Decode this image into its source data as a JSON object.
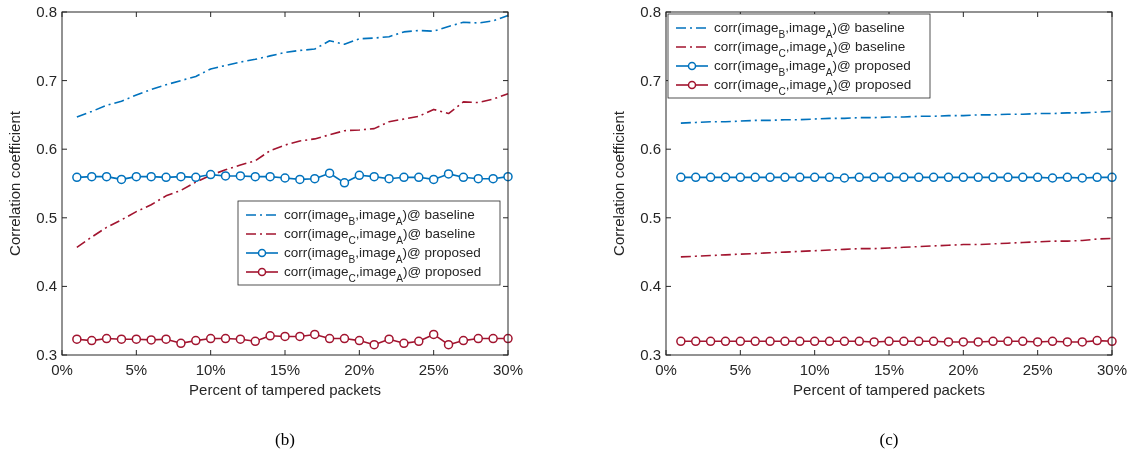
{
  "chart_data": [
    {
      "type": "line",
      "title": "(b)",
      "xlabel": "Percent of tampered packets",
      "ylabel": "Correlation coefficient",
      "x": [
        1,
        2,
        3,
        4,
        5,
        6,
        7,
        8,
        9,
        10,
        11,
        12,
        13,
        14,
        15,
        16,
        17,
        18,
        19,
        20,
        21,
        22,
        23,
        24,
        25,
        26,
        27,
        28,
        29,
        30
      ],
      "xlim": [
        0,
        30
      ],
      "xticks": [
        {
          "value": 0,
          "label": "0%"
        },
        {
          "value": 5,
          "label": "5%"
        },
        {
          "value": 10,
          "label": "10%"
        },
        {
          "value": 15,
          "label": "15%"
        },
        {
          "value": 20,
          "label": "20%"
        },
        {
          "value": 25,
          "label": "25%"
        },
        {
          "value": 30,
          "label": "30%"
        }
      ],
      "ylim": [
        0.3,
        0.8
      ],
      "yticks": [
        0.3,
        0.4,
        0.5,
        0.6,
        0.7,
        0.8
      ],
      "grid": false,
      "legend": "bottom right",
      "series": [
        {
          "name": "corr(image$_{B}$,image$_{A}$)@ baseline",
          "color": "#0072bd",
          "line_style": "dashed",
          "marker": "none",
          "values": [
            0.647,
            0.655,
            0.664,
            0.67,
            0.679,
            0.687,
            0.694,
            0.7,
            0.706,
            0.717,
            0.722,
            0.727,
            0.731,
            0.736,
            0.741,
            0.744,
            0.746,
            0.758,
            0.753,
            0.761,
            0.762,
            0.764,
            0.771,
            0.773,
            0.772,
            0.779,
            0.785,
            0.784,
            0.787,
            0.795
          ]
        },
        {
          "name": "corr(image$_{C}$,image$_{A}$)@ baseline",
          "color": "#a2142f",
          "line_style": "dashed",
          "marker": "none",
          "values": [
            0.457,
            0.472,
            0.486,
            0.497,
            0.509,
            0.519,
            0.532,
            0.54,
            0.552,
            0.562,
            0.57,
            0.577,
            0.583,
            0.598,
            0.606,
            0.612,
            0.615,
            0.621,
            0.627,
            0.628,
            0.63,
            0.64,
            0.644,
            0.648,
            0.658,
            0.652,
            0.669,
            0.668,
            0.673,
            0.681
          ]
        },
        {
          "name": "corr(image$_{B}$,image$_{A}$)@ proposed",
          "color": "#0072bd",
          "line_style": "solid",
          "marker": "circle",
          "values": [
            0.559,
            0.56,
            0.56,
            0.556,
            0.56,
            0.56,
            0.559,
            0.56,
            0.559,
            0.563,
            0.561,
            0.561,
            0.56,
            0.56,
            0.558,
            0.556,
            0.557,
            0.565,
            0.551,
            0.562,
            0.56,
            0.557,
            0.559,
            0.559,
            0.556,
            0.564,
            0.559,
            0.557,
            0.557,
            0.56
          ]
        },
        {
          "name": "corr(image$_{C}$,image$_{A}$)@ proposed",
          "color": "#a2142f",
          "line_style": "solid",
          "marker": "circle",
          "values": [
            0.323,
            0.321,
            0.324,
            0.323,
            0.323,
            0.322,
            0.323,
            0.317,
            0.321,
            0.324,
            0.324,
            0.323,
            0.32,
            0.328,
            0.327,
            0.327,
            0.33,
            0.324,
            0.324,
            0.321,
            0.315,
            0.323,
            0.317,
            0.32,
            0.33,
            0.315,
            0.321,
            0.324,
            0.324,
            0.324
          ]
        }
      ]
    },
    {
      "type": "line",
      "title": "(c)",
      "xlabel": "Percent of tampered packets",
      "ylabel": "Correlation coefficient",
      "x": [
        1,
        2,
        3,
        4,
        5,
        6,
        7,
        8,
        9,
        10,
        11,
        12,
        13,
        14,
        15,
        16,
        17,
        18,
        19,
        20,
        21,
        22,
        23,
        24,
        25,
        26,
        27,
        28,
        29,
        30
      ],
      "xlim": [
        0,
        30
      ],
      "xticks": [
        {
          "value": 0,
          "label": "0%"
        },
        {
          "value": 5,
          "label": "5%"
        },
        {
          "value": 10,
          "label": "10%"
        },
        {
          "value": 15,
          "label": "15%"
        },
        {
          "value": 20,
          "label": "20%"
        },
        {
          "value": 25,
          "label": "25%"
        },
        {
          "value": 30,
          "label": "30%"
        }
      ],
      "ylim": [
        0.3,
        0.8
      ],
      "yticks": [
        0.3,
        0.4,
        0.5,
        0.6,
        0.7,
        0.8
      ],
      "grid": false,
      "legend": "top left",
      "series": [
        {
          "name": "corr(image$_{B}$,image$_{A}$)@ baseline",
          "color": "#0072bd",
          "line_style": "dashed",
          "marker": "none",
          "values": [
            0.638,
            0.639,
            0.64,
            0.64,
            0.641,
            0.642,
            0.642,
            0.643,
            0.643,
            0.644,
            0.645,
            0.645,
            0.646,
            0.646,
            0.647,
            0.647,
            0.648,
            0.648,
            0.649,
            0.649,
            0.65,
            0.65,
            0.651,
            0.651,
            0.652,
            0.652,
            0.653,
            0.653,
            0.654,
            0.655
          ]
        },
        {
          "name": "corr(image$_{C}$,image$_{A}$)@ baseline",
          "color": "#a2142f",
          "line_style": "dashed",
          "marker": "none",
          "values": [
            0.443,
            0.444,
            0.445,
            0.446,
            0.447,
            0.448,
            0.449,
            0.45,
            0.451,
            0.452,
            0.453,
            0.454,
            0.455,
            0.455,
            0.456,
            0.457,
            0.458,
            0.459,
            0.46,
            0.461,
            0.461,
            0.462,
            0.463,
            0.464,
            0.465,
            0.466,
            0.466,
            0.467,
            0.469,
            0.47
          ]
        },
        {
          "name": "corr(image$_{B}$,image$_{A}$)@ proposed",
          "color": "#0072bd",
          "line_style": "solid",
          "marker": "circle",
          "values": [
            0.559,
            0.559,
            0.559,
            0.559,
            0.559,
            0.559,
            0.559,
            0.559,
            0.559,
            0.559,
            0.559,
            0.558,
            0.559,
            0.559,
            0.559,
            0.559,
            0.559,
            0.559,
            0.559,
            0.559,
            0.559,
            0.559,
            0.559,
            0.559,
            0.559,
            0.558,
            0.559,
            0.558,
            0.559,
            0.559
          ]
        },
        {
          "name": "corr(image$_{C}$,image$_{A}$)@ proposed",
          "color": "#a2142f",
          "line_style": "solid",
          "marker": "circle",
          "values": [
            0.32,
            0.32,
            0.32,
            0.32,
            0.32,
            0.32,
            0.32,
            0.32,
            0.32,
            0.32,
            0.32,
            0.32,
            0.32,
            0.319,
            0.32,
            0.32,
            0.32,
            0.32,
            0.319,
            0.319,
            0.319,
            0.32,
            0.32,
            0.32,
            0.319,
            0.32,
            0.319,
            0.319,
            0.321,
            0.32
          ]
        }
      ]
    }
  ]
}
